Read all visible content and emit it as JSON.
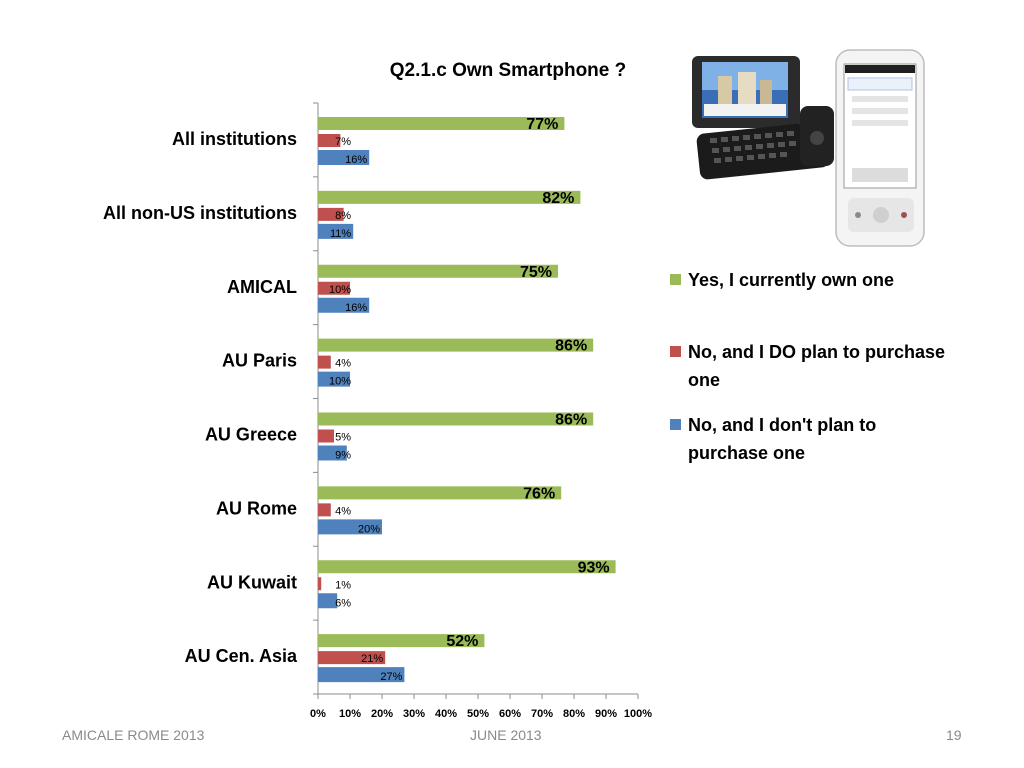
{
  "slide": {
    "footer_left": "AMICALE ROME 2013",
    "footer_center": "JUNE 2013",
    "page_number": "19"
  },
  "legend": {
    "items": [
      {
        "label": "Yes, I currently own one",
        "color": "#9bbb59"
      },
      {
        "label": "No, and I DO plan to purchase one",
        "color": "#c0504d"
      },
      {
        "label": "No, and I don't plan to purchase one",
        "color": "#4f81bd"
      }
    ]
  },
  "images": {
    "phone": "smartphone-photo"
  },
  "chart_data": {
    "type": "bar",
    "orientation": "horizontal",
    "title": "Q2.1.c  Own Smartphone ?",
    "categories": [
      "All institutions",
      "All non-US institutions",
      "AMICAL",
      "AU Paris",
      "AU Greece",
      "AU Rome",
      "AU Kuwait",
      "AU Cen. Asia"
    ],
    "series": [
      {
        "name": "Yes, I currently own one",
        "color": "#9bbb59",
        "values": [
          77,
          82,
          75,
          86,
          86,
          76,
          93,
          52
        ],
        "labels": [
          "77%",
          "82%",
          "75%",
          "86%",
          "86%",
          "76%",
          "93%",
          "52%"
        ]
      },
      {
        "name": "No, and I DO plan to purchase one",
        "color": "#c0504d",
        "values": [
          7,
          8,
          10,
          4,
          5,
          4,
          1,
          21
        ],
        "labels": [
          "7%",
          "8%",
          "10%",
          "4%",
          "5%",
          "4%",
          "1%",
          "21%"
        ]
      },
      {
        "name": "No, and I don't plan to purchase one",
        "color": "#4f81bd",
        "values": [
          16,
          11,
          16,
          10,
          9,
          20,
          6,
          27
        ],
        "labels": [
          "16%",
          "11%",
          "16%",
          "10%",
          "9%",
          "20%",
          "6%",
          "27%"
        ]
      }
    ],
    "x_ticks": [
      "0%",
      "10%",
      "20%",
      "30%",
      "40%",
      "50%",
      "60%",
      "70%",
      "80%",
      "90%",
      "100%"
    ],
    "xlim": [
      0,
      100
    ],
    "grid": false,
    "legend_position": "right"
  }
}
